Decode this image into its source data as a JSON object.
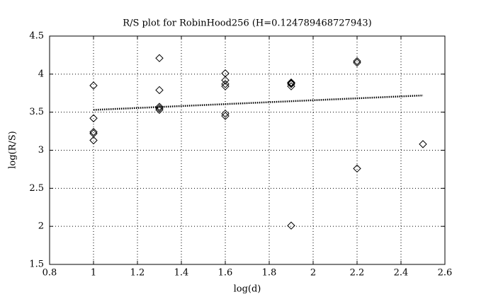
{
  "chart_data": {
    "type": "scatter",
    "title": "R/S plot for RobinHood256 (H=0.124789468727943)",
    "x_label": "log(d)",
    "y_label": "log(R/S)",
    "points": {
      "x": [
        1,
        1,
        1,
        1,
        1,
        1.3,
        1.3,
        1.3,
        1.3,
        1.3,
        1.6,
        1.6,
        1.6,
        1.6,
        1.6,
        1.6,
        1.9,
        1.9,
        1.9,
        1.9,
        1.9,
        2.2,
        2.2,
        2.2,
        2.5
      ],
      "y": [
        3.85,
        3.42,
        3.24,
        3.22,
        3.13,
        4.21,
        3.79,
        3.57,
        3.55,
        3.53,
        4.01,
        3.92,
        3.87,
        3.84,
        3.48,
        3.45,
        3.89,
        3.88,
        3.87,
        3.84,
        2.01,
        4.17,
        4.15,
        2.76,
        3.08
      ]
    },
    "fit": {
      "x": [
        1,
        2.5
      ],
      "y": [
        3.53,
        3.72
      ]
    },
    "color": "#000000",
    "xlim": [
      0.8,
      2.6
    ],
    "xticks": [
      0.8,
      1,
      1.2,
      1.4,
      1.6,
      1.8,
      2,
      2.2,
      2.4,
      2.6
    ],
    "ylim": [
      1.5,
      4.5
    ],
    "yticks": [
      1.5,
      2,
      2.5,
      3,
      3.5,
      4,
      4.5
    ],
    "grid": true
  }
}
